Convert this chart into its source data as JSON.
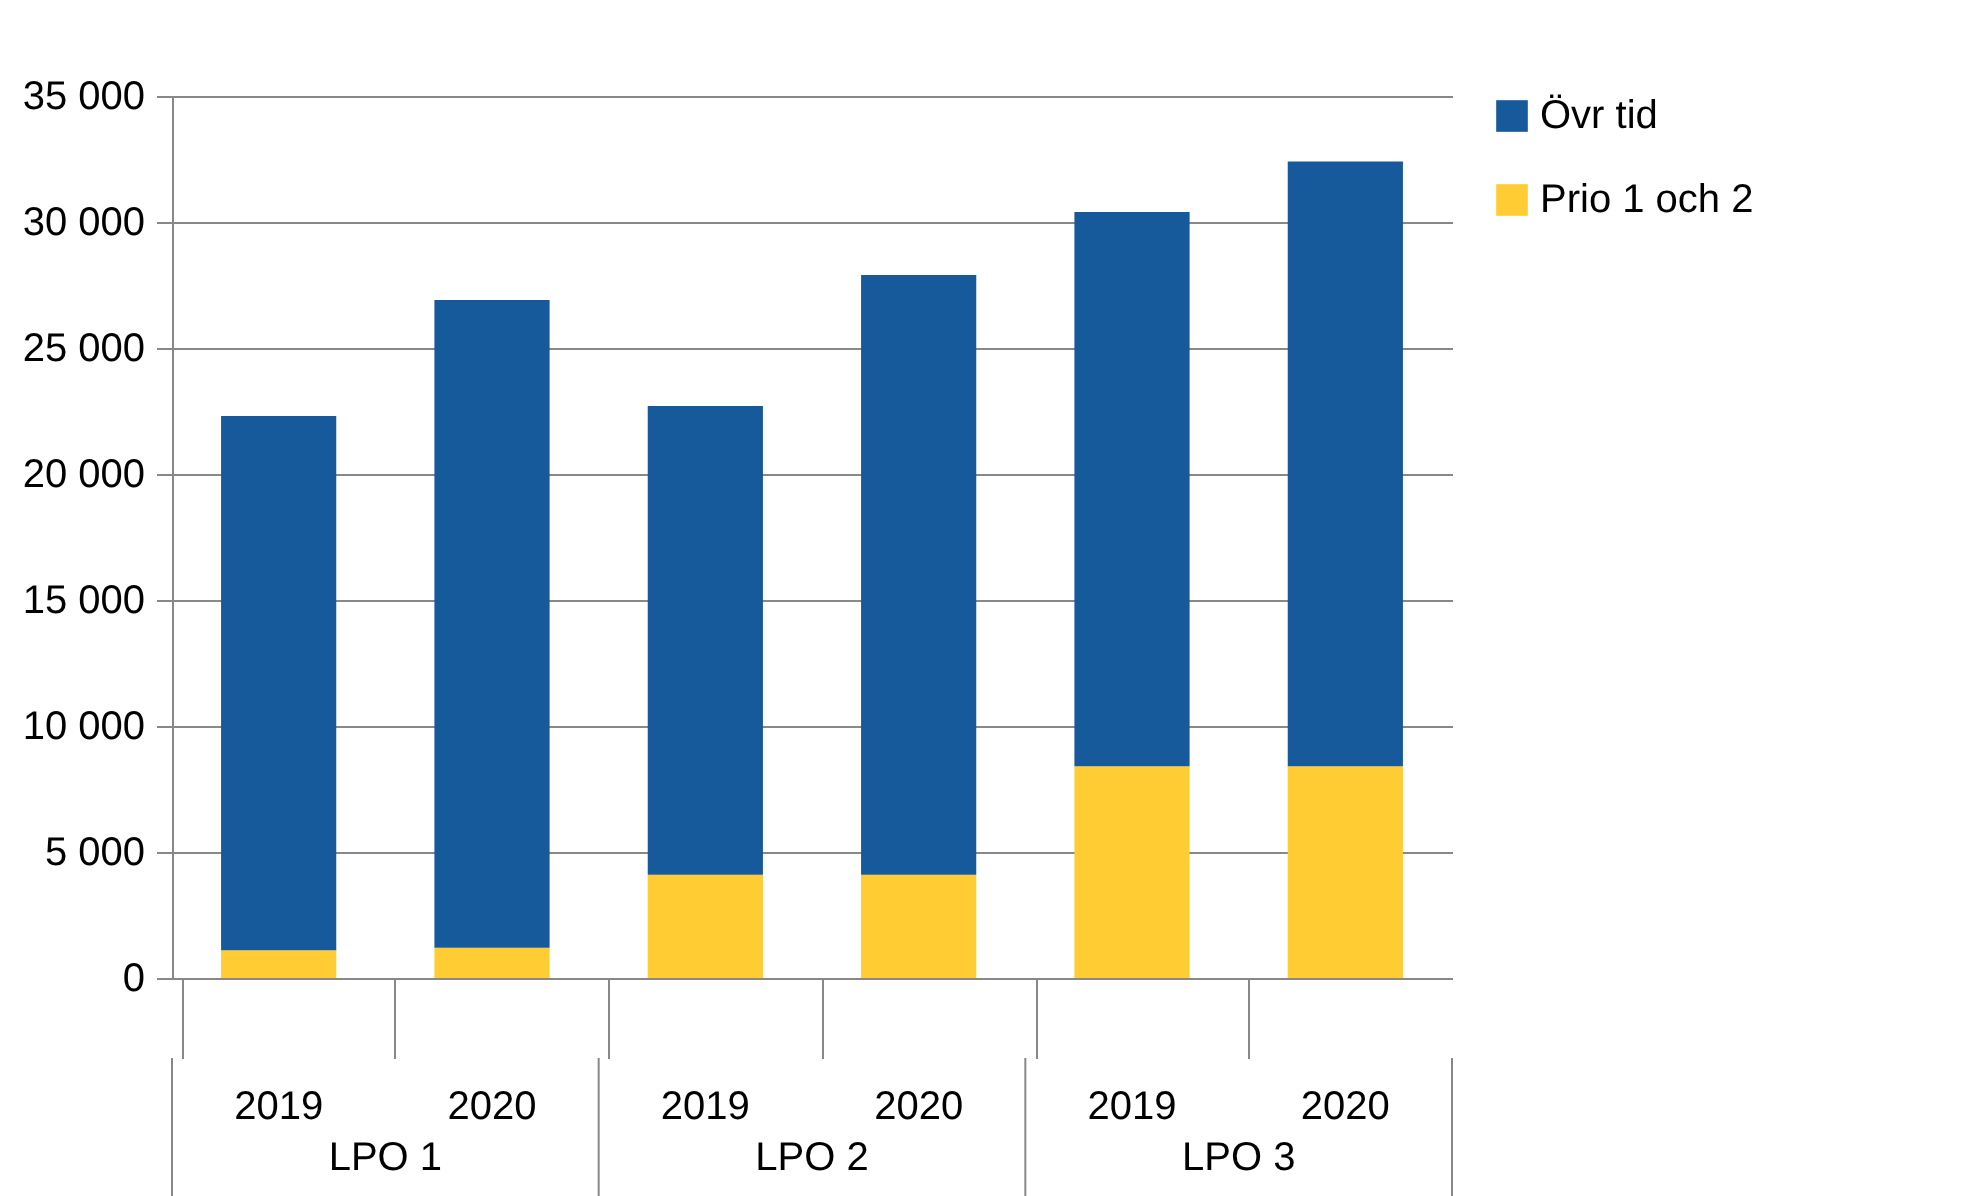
{
  "chart_data": {
    "type": "bar",
    "stacked": true,
    "categories": [
      "2019",
      "2020",
      "2019",
      "2020",
      "2019",
      "2020"
    ],
    "annotations": [
      "LPO 1",
      "LPO 2",
      "LPO 3"
    ],
    "series": [
      {
        "name": "Prio 1 och 2",
        "color": "#ffcc33",
        "values": [
          1100,
          1200,
          4100,
          4100,
          8400,
          8400
        ]
      },
      {
        "name": "Övr tid",
        "color": "#175a9b",
        "values": [
          21200,
          25700,
          18600,
          23800,
          22000,
          24000
        ]
      }
    ],
    "ylim": [
      0,
      35000
    ],
    "yticks": [
      {
        "value": 0,
        "label": "0"
      },
      {
        "value": 5000,
        "label": "5 000"
      },
      {
        "value": 10000,
        "label": "10 000"
      },
      {
        "value": 15000,
        "label": "15 000"
      },
      {
        "value": 20000,
        "label": "20 000"
      },
      {
        "value": 25000,
        "label": "25 000"
      },
      {
        "value": 30000,
        "label": "30 000"
      },
      {
        "value": 35000,
        "label": "35 000"
      }
    ],
    "grid": "y",
    "legend": "right"
  }
}
